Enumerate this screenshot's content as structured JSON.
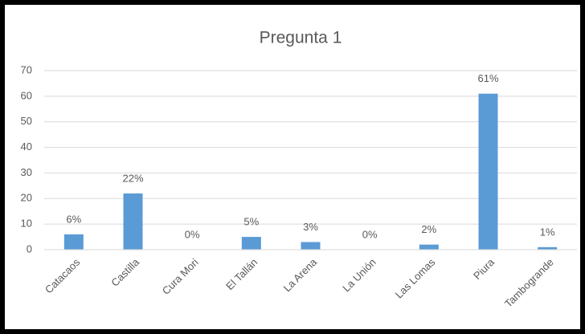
{
  "chart_data": {
    "type": "bar",
    "title": "Pregunta 1",
    "categories": [
      "Catacaos",
      "Castilla",
      "Cura Mori",
      "El Tallán",
      "La Arena",
      "La Unión",
      "Las Lomas",
      "Piura",
      "Tambogrande"
    ],
    "values": [
      6,
      22,
      0,
      5,
      3,
      0,
      2,
      61,
      1
    ],
    "value_labels": [
      "6%",
      "22%",
      "0%",
      "5%",
      "3%",
      "0%",
      "2%",
      "61%",
      "1%"
    ],
    "color": "#5b9bd5",
    "ylim": [
      0,
      70
    ],
    "yticks": [
      0,
      10,
      20,
      30,
      40,
      50,
      60,
      70
    ],
    "grid": true
  }
}
